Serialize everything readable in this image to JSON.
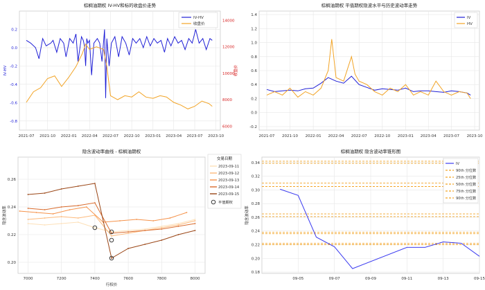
{
  "chart_data": [
    {
      "type": "line",
      "title": "棕榈油期权 IV-HV和标的收盘价走势",
      "xlabel": "",
      "ylabel": "IV-HV",
      "y2label": "收盘价",
      "ylim": [
        -0.9,
        0.4
      ],
      "yticks": [
        -0.8,
        -0.6,
        -0.4,
        -0.2,
        0.0,
        0.2
      ],
      "y2lim": [
        5700,
        14700
      ],
      "y2ticks": [
        6000,
        8000,
        10000,
        12000,
        14000
      ],
      "xticks": [
        "2021-07",
        "2021-10",
        "2022-01",
        "2022-04",
        "2022-07",
        "2022-10",
        "2023-01",
        "2023-04",
        "2023-07",
        "2023-10"
      ],
      "legend": "top-right",
      "grid": true,
      "series": [
        {
          "name": "IV-HV",
          "axis": "left",
          "color": "#1f1fd6",
          "x": [
            "2021-07-01",
            "2021-07-20",
            "2021-08-10",
            "2021-08-25",
            "2021-09-10",
            "2021-09-25",
            "2021-10-15",
            "2021-10-25",
            "2021-11-10",
            "2021-11-25",
            "2021-12-10",
            "2021-12-20",
            "2022-01-05",
            "2022-01-20",
            "2022-02-01",
            "2022-02-10",
            "2022-02-25",
            "2022-03-05",
            "2022-03-10",
            "2022-03-15",
            "2022-03-20",
            "2022-03-25",
            "2022-04-01",
            "2022-04-10",
            "2022-04-20",
            "2022-05-05",
            "2022-05-15",
            "2022-05-25",
            "2022-06-05",
            "2022-06-10",
            "2022-06-15",
            "2022-06-25",
            "2022-07-05",
            "2022-07-20",
            "2022-08-05",
            "2022-08-20",
            "2022-09-05",
            "2022-09-20",
            "2022-10-05",
            "2022-10-20",
            "2022-11-05",
            "2022-11-20",
            "2022-12-05",
            "2022-12-20",
            "2023-01-05",
            "2023-01-20",
            "2023-02-05",
            "2023-02-20",
            "2023-03-05",
            "2023-03-20",
            "2023-04-05",
            "2023-04-20",
            "2023-05-05",
            "2023-05-20",
            "2023-06-05",
            "2023-06-20",
            "2023-07-05",
            "2023-07-20",
            "2023-08-05",
            "2023-08-20",
            "2023-09-05",
            "2023-09-15"
          ],
          "y": [
            0.08,
            0.05,
            0.0,
            -0.12,
            0.1,
            0.02,
            0.05,
            0.08,
            -0.05,
            0.1,
            0.05,
            -0.1,
            0.1,
            0.05,
            0.15,
            -0.15,
            0.12,
            0.08,
            0.02,
            -0.2,
            0.1,
            0.05,
            0.08,
            -0.3,
            0.05,
            0.1,
            0.05,
            -0.15,
            0.2,
            -0.55,
            0.1,
            -0.2,
            0.05,
            0.12,
            -0.1,
            0.12,
            0.05,
            -0.08,
            0.1,
            0.05,
            0.1,
            0.0,
            0.12,
            0.02,
            0.1,
            0.05,
            0.08,
            -0.05,
            0.1,
            0.02,
            0.12,
            0.05,
            0.08,
            -0.02,
            0.1,
            0.05,
            0.2,
            0.05,
            0.1,
            -0.02,
            0.1,
            0.08
          ]
        },
        {
          "name": "收盘价",
          "axis": "right",
          "color": "#f2a324",
          "x": [
            "2021-07-01",
            "2021-08-01",
            "2021-09-01",
            "2021-10-01",
            "2021-11-01",
            "2021-12-01",
            "2022-01-01",
            "2022-02-01",
            "2022-03-01",
            "2022-03-15",
            "2022-04-01",
            "2022-05-01",
            "2022-06-01",
            "2022-06-15",
            "2022-07-01",
            "2022-08-01",
            "2022-09-01",
            "2022-10-01",
            "2022-11-01",
            "2022-12-01",
            "2023-01-01",
            "2023-02-01",
            "2023-03-01",
            "2023-04-01",
            "2023-05-01",
            "2023-06-01",
            "2023-07-01",
            "2023-08-01",
            "2023-09-01",
            "2023-09-15"
          ],
          "y": [
            7800,
            8600,
            8900,
            9600,
            9800,
            9000,
            9700,
            10500,
            11500,
            12200,
            11800,
            12000,
            11800,
            10500,
            8300,
            8000,
            8300,
            8200,
            8600,
            8200,
            8100,
            8300,
            8200,
            7800,
            7600,
            7300,
            7500,
            7900,
            7700,
            7500
          ]
        }
      ]
    },
    {
      "type": "line",
      "title": "棕榈油期权 平值期权隐波水平与历史波动率走势",
      "xlabel": "",
      "ylabel": "",
      "ylim": [
        -0.25,
        1.45
      ],
      "yticks": [
        -0.2,
        0.0,
        0.2,
        0.4,
        0.6,
        0.8,
        1.0,
        1.2,
        1.4
      ],
      "xticks": [
        "2021-07",
        "2021-10",
        "2022-01",
        "2022-04",
        "2022-07",
        "2022-10",
        "2023-01",
        "2023-04",
        "2023-07",
        "2023-10"
      ],
      "legend": "top-right",
      "grid": true,
      "series": [
        {
          "name": "IV",
          "color": "#1f1fd6",
          "x": [
            "2021-07-01",
            "2021-08-01",
            "2021-09-01",
            "2021-10-01",
            "2021-11-01",
            "2021-12-01",
            "2022-01-01",
            "2022-02-01",
            "2022-03-01",
            "2022-04-01",
            "2022-05-01",
            "2022-06-01",
            "2022-07-01",
            "2022-08-01",
            "2022-09-01",
            "2022-10-01",
            "2022-11-01",
            "2022-12-01",
            "2023-01-01",
            "2023-02-01",
            "2023-03-01",
            "2023-04-01",
            "2023-05-01",
            "2023-06-01",
            "2023-07-01",
            "2023-08-01",
            "2023-09-01",
            "2023-09-15"
          ],
          "y": [
            0.33,
            0.3,
            0.31,
            0.32,
            0.31,
            0.34,
            0.35,
            0.42,
            0.5,
            0.45,
            0.42,
            0.52,
            0.4,
            0.36,
            0.32,
            0.34,
            0.33,
            0.32,
            0.35,
            0.3,
            0.31,
            0.31,
            0.3,
            0.29,
            0.31,
            0.3,
            0.28,
            0.25
          ]
        },
        {
          "name": "HV",
          "color": "#f2a324",
          "x": [
            "2021-07-01",
            "2021-08-01",
            "2021-09-01",
            "2021-10-01",
            "2021-11-01",
            "2021-12-01",
            "2022-01-01",
            "2022-02-01",
            "2022-03-01",
            "2022-03-15",
            "2022-04-01",
            "2022-05-01",
            "2022-06-01",
            "2022-06-15",
            "2022-07-01",
            "2022-08-01",
            "2022-09-01",
            "2022-10-01",
            "2022-11-01",
            "2022-12-01",
            "2023-01-01",
            "2023-02-01",
            "2023-03-01",
            "2023-04-01",
            "2023-05-01",
            "2023-06-01",
            "2023-07-01",
            "2023-08-01",
            "2023-09-01",
            "2023-09-15"
          ],
          "y": [
            0.25,
            0.3,
            0.25,
            0.35,
            0.22,
            0.3,
            0.25,
            0.35,
            0.6,
            1.05,
            0.5,
            0.45,
            0.8,
            0.55,
            0.45,
            0.4,
            0.3,
            0.25,
            0.35,
            0.3,
            0.4,
            0.25,
            0.3,
            0.25,
            0.45,
            0.3,
            0.25,
            0.3,
            0.28,
            0.2
          ]
        }
      ]
    },
    {
      "type": "line",
      "title": "隐含波动率曲线 - 棕榈油期权",
      "xlabel": "行权价",
      "ylabel": "隐含波动率",
      "xlim": [
        6940,
        8060
      ],
      "ylim": [
        0.192,
        0.276
      ],
      "xticks": [
        7000,
        7200,
        7400,
        7600,
        7800,
        8000
      ],
      "yticks": [
        0.2,
        0.22,
        0.24,
        0.26
      ],
      "legend": "right",
      "legend_title": "交易日期",
      "grid": true,
      "series": [
        {
          "name": "2023-09-11",
          "color": "#fde0b8",
          "x": [
            7000,
            7100,
            7200,
            7300,
            7400,
            7500,
            7600,
            7700,
            7800,
            7900,
            8000
          ],
          "y": [
            0.228,
            0.227,
            0.228,
            0.229,
            0.225,
            0.222,
            0.223,
            0.224,
            0.226,
            0.228,
            0.231
          ]
        },
        {
          "name": "2023-09-12",
          "color": "#fdb97a",
          "x": [
            7000,
            7100,
            7200,
            7300,
            7400,
            7500,
            7600,
            7700,
            7800,
            7900,
            8000
          ],
          "y": [
            0.231,
            0.232,
            0.233,
            0.232,
            0.234,
            0.219,
            0.221,
            0.223,
            0.225,
            0.227,
            0.23
          ]
        },
        {
          "name": "2023-09-13",
          "color": "#f5924a",
          "x": [
            6950,
            7050,
            7150,
            7250,
            7350,
            7450,
            7550,
            7650,
            7750,
            7850,
            7950
          ],
          "y": [
            0.237,
            0.236,
            0.235,
            0.238,
            0.24,
            0.229,
            0.23,
            0.231,
            0.23,
            0.232,
            0.236
          ]
        },
        {
          "name": "2023-09-14",
          "color": "#d96a2b",
          "x": [
            7000,
            7100,
            7200,
            7300,
            7400,
            7500,
            7600,
            7700,
            7800,
            7900,
            8000
          ],
          "y": [
            0.239,
            0.238,
            0.24,
            0.241,
            0.243,
            0.221,
            0.222,
            0.223,
            0.224,
            0.226,
            0.228
          ]
        },
        {
          "name": "2023-09-15",
          "color": "#9a4515",
          "x": [
            7000,
            7100,
            7200,
            7300,
            7400,
            7500,
            7600,
            7700,
            7800,
            7900,
            8000
          ],
          "y": [
            0.249,
            0.25,
            0.253,
            0.255,
            0.257,
            0.203,
            0.21,
            0.213,
            0.216,
            0.22,
            0.223
          ]
        }
      ],
      "markers": {
        "name": "平值期权",
        "points": [
          {
            "x": 7400,
            "y": 0.225
          },
          {
            "x": 7500,
            "y": 0.222
          },
          {
            "x": 7500,
            "y": 0.216
          },
          {
            "x": 7500,
            "y": 0.203
          }
        ]
      }
    },
    {
      "type": "line",
      "title": "棕榈油期权 隐含波动率锥形图",
      "xlabel": "",
      "ylabel": "隐含波动率",
      "ylim": [
        0.178,
        0.348
      ],
      "yticks": [
        0.18,
        0.2,
        0.22,
        0.24,
        0.26,
        0.28,
        0.3,
        0.32,
        0.34
      ],
      "xticks": [
        "09-05",
        "09-07",
        "09-09",
        "09-11",
        "09-13",
        "09-15"
      ],
      "legend": "top-right",
      "grid": true,
      "series": [
        {
          "name": "IV",
          "color": "#3b3bf0",
          "x": [
            "09-04",
            "09-05",
            "09-06",
            "09-07",
            "09-08",
            "09-11",
            "09-12",
            "09-13",
            "09-14",
            "09-15"
          ],
          "y": [
            0.301,
            0.292,
            0.231,
            0.217,
            0.185,
            0.216,
            0.216,
            0.224,
            0.222,
            0.203
          ]
        }
      ],
      "reference_lines": [
        {
          "name": "90th 分位数",
          "style": "dashed",
          "color": "#f2a324",
          "values": [
            0.342,
            0.339
          ]
        },
        {
          "name": "25th 分位数",
          "style": "dashed",
          "color": "#f2a324",
          "values": [
            0.31,
            0.305
          ]
        },
        {
          "name": "50th 分位数",
          "style": "dashed",
          "color": "#f2a324",
          "values": [
            0.265,
            0.261
          ]
        },
        {
          "name": "75th 分位数",
          "style": "dashed",
          "color": "#f2a324",
          "values": [
            0.238,
            0.236
          ]
        },
        {
          "name": "90th 分位数",
          "style": "dashed",
          "color": "#f2a324",
          "values": [
            0.222,
            0.22
          ]
        }
      ]
    }
  ]
}
